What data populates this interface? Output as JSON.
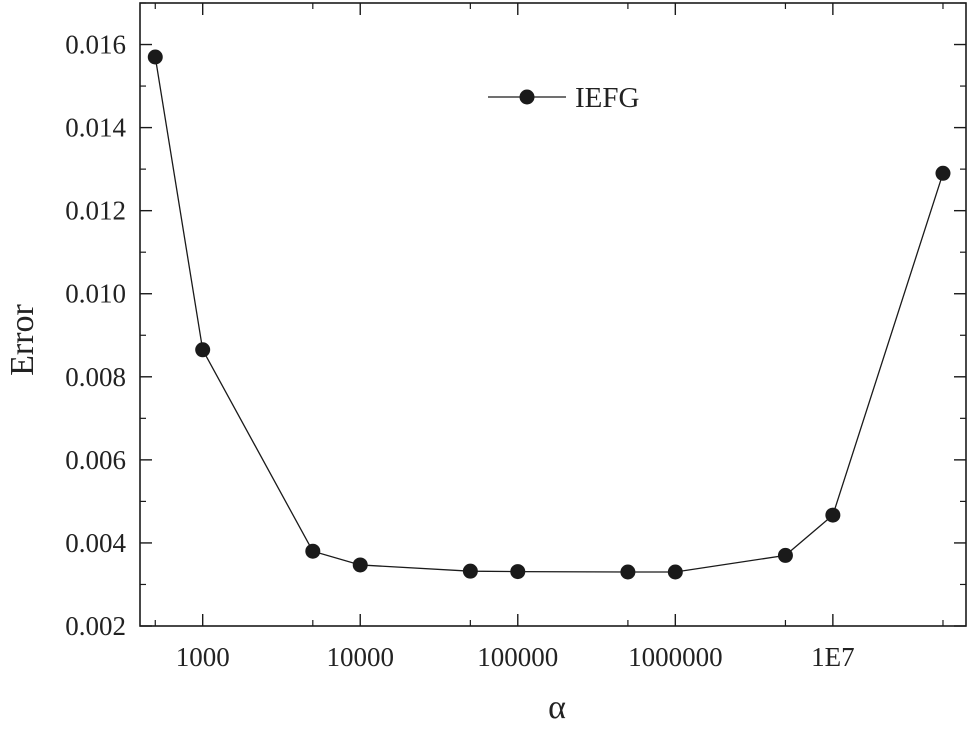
{
  "chart_data": {
    "type": "line",
    "x_scale": "log",
    "xlabel": "α",
    "ylabel": "Error",
    "xlim": [
      400,
      70000000
    ],
    "ylim": [
      0.002,
      0.017
    ],
    "x_ticks": [
      1000,
      10000,
      100000,
      1000000,
      10000000
    ],
    "x_tick_labels": [
      "1000",
      "10000",
      "100000",
      "1000000",
      "1E7"
    ],
    "y_ticks": [
      0.002,
      0.004,
      0.006,
      0.008,
      0.01,
      0.012,
      0.014,
      0.016
    ],
    "y_tick_labels": [
      "0.002",
      "0.004",
      "0.006",
      "0.008",
      "0.010",
      "0.012",
      "0.014",
      "0.016"
    ],
    "legend_position": "top-center",
    "grid": false,
    "series": [
      {
        "name": "IEFG",
        "color": "#1a1a1a",
        "marker": "circle",
        "x": [
          500,
          1000,
          5000,
          10000,
          50000,
          100000,
          500000,
          1000000,
          5000000,
          10000000,
          50000000
        ],
        "y": [
          0.0157,
          0.00865,
          0.0038,
          0.00347,
          0.00332,
          0.00331,
          0.0033,
          0.0033,
          0.0037,
          0.00467,
          0.0129
        ]
      }
    ]
  }
}
